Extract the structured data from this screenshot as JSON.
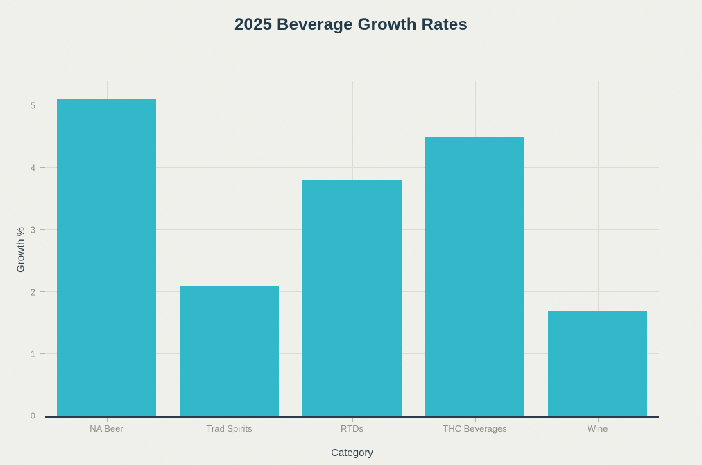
{
  "page": {
    "background": "#f1f1ec"
  },
  "chart_data": {
    "type": "bar",
    "title": "2025 Beverage Growth Rates",
    "xlabel": "Category",
    "ylabel": "Growth %",
    "categories": [
      "NA Beer",
      "Trad Spirits",
      "RTDs",
      "THC Beverages",
      "Wine"
    ],
    "values": [
      5.1,
      2.1,
      3.8,
      4.5,
      1.7
    ],
    "yticks": [
      0,
      1,
      2,
      3,
      4,
      5
    ],
    "ylim": [
      0,
      5.39
    ],
    "grid": "horizontal and vertical gridlines, legend none",
    "colors": {
      "bar": "#32b8c8",
      "title": "#233b49",
      "axis_title": "#2d4150",
      "tick_label": "#8f8f88",
      "gridline": "#dcdcd4",
      "tick_mark": "#b3b3ac",
      "axis_line": "#2c3b45"
    }
  }
}
